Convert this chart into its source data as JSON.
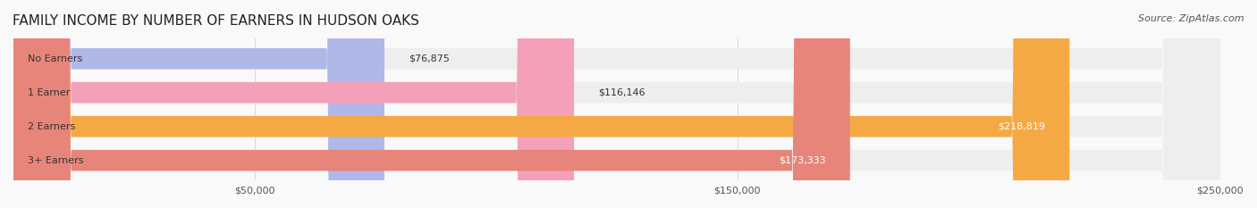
{
  "title": "FAMILY INCOME BY NUMBER OF EARNERS IN HUDSON OAKS",
  "source": "Source: ZipAtlas.com",
  "categories": [
    "No Earners",
    "1 Earner",
    "2 Earners",
    "3+ Earners"
  ],
  "values": [
    76875,
    116146,
    218819,
    173333
  ],
  "bar_colors": [
    "#b0b8e8",
    "#f4a0b8",
    "#f5a945",
    "#e8857a"
  ],
  "bar_bg_color": "#eeeeee",
  "background_color": "#f9f9f9",
  "xlim": [
    0,
    250000
  ],
  "xtick_values": [
    50000,
    150000,
    250000
  ],
  "xtick_labels": [
    "$50,000",
    "$150,000",
    "$250,000"
  ],
  "title_fontsize": 11,
  "source_fontsize": 8,
  "bar_label_fontsize": 8,
  "tick_fontsize": 8,
  "label_fontsize": 8
}
